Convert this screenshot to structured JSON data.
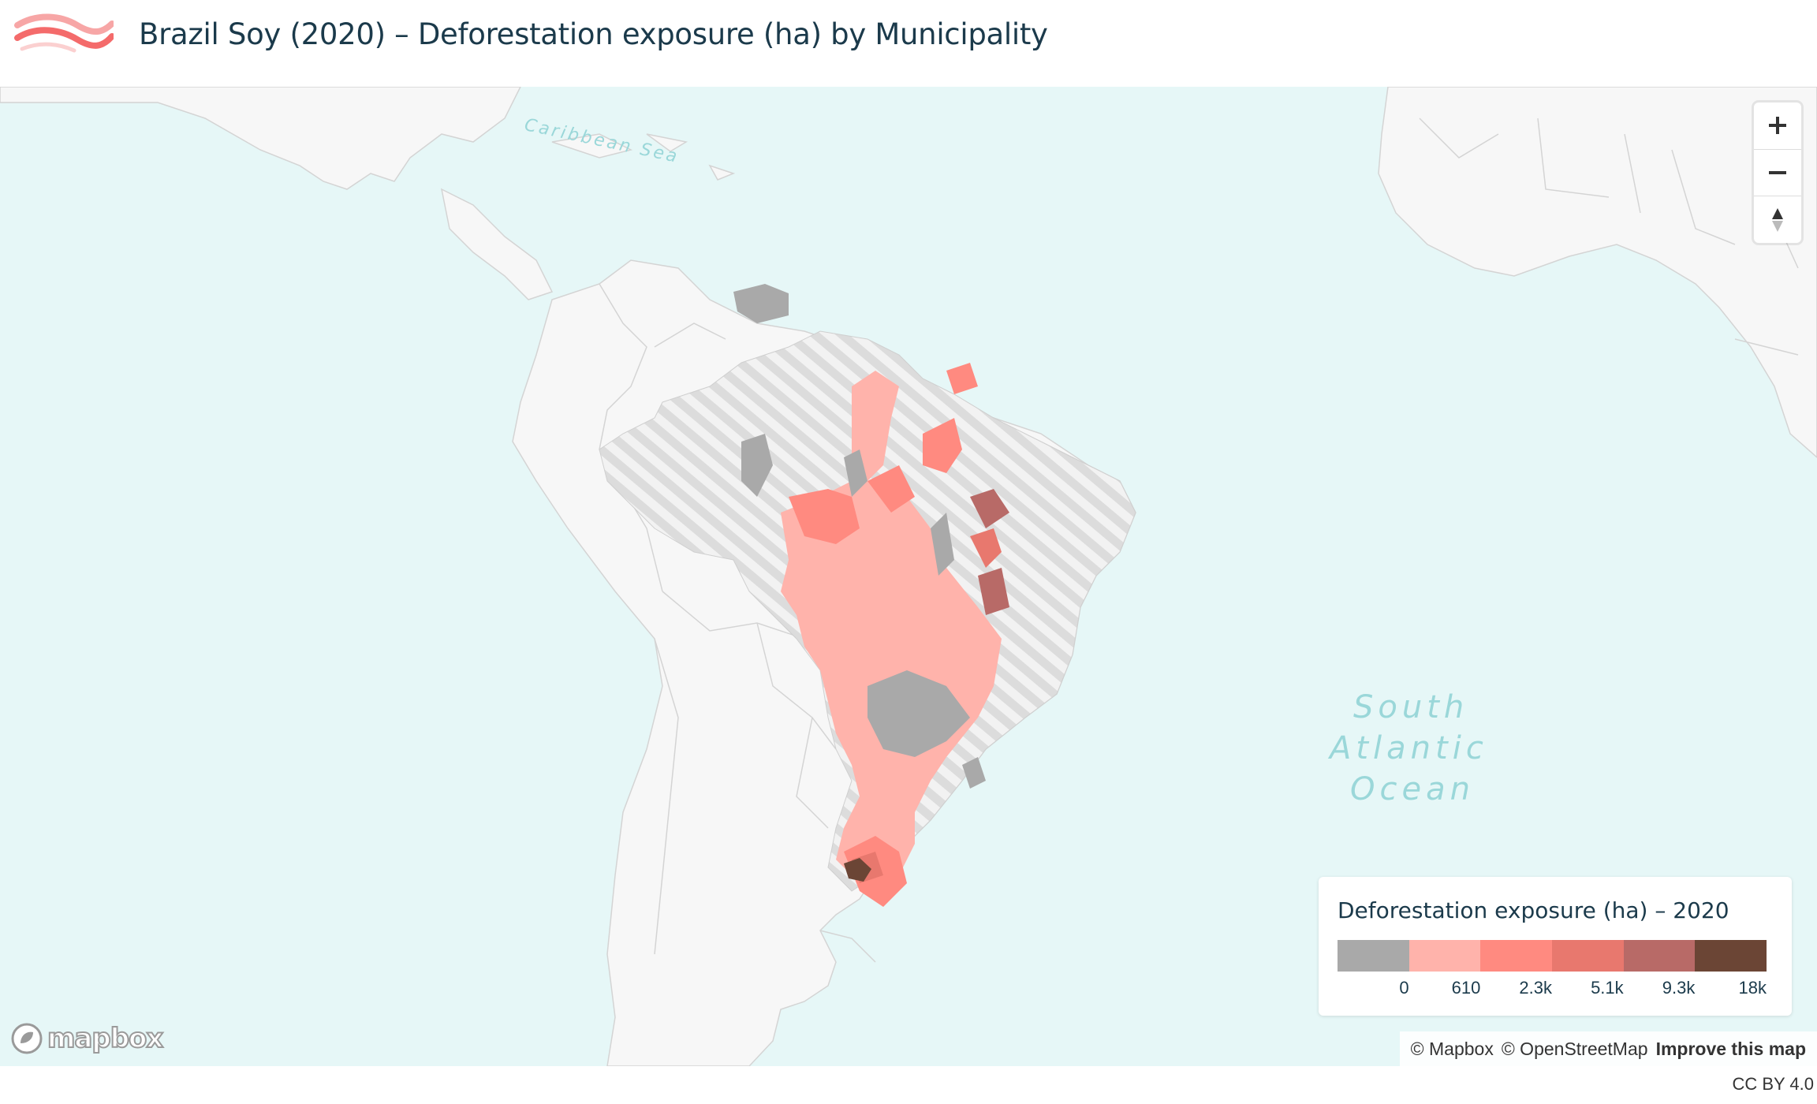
{
  "header": {
    "title": "Brazil Soy (2020) – Deforestation exposure (ha) by Municipality",
    "logo_icon": "wave-logo-icon"
  },
  "map": {
    "labels": {
      "caribbean": "Caribbean Sea",
      "south": "South",
      "atlantic": "Atlantic",
      "ocean": "Ocean"
    },
    "colors": {
      "water": "#e6f7f7",
      "land": "#f7f7f7",
      "no_data_hatch": "#d9d9d9",
      "zero": "#a9a9a9"
    }
  },
  "controls": {
    "zoom_in_icon": "plus-icon",
    "zoom_out_icon": "minus-icon",
    "compass_icon": "compass-icon"
  },
  "legend": {
    "title": "Deforestation exposure (ha) – 2020",
    "colors": [
      "#a9a9a9",
      "#ffb3ab",
      "#ff8a80",
      "#e8786e",
      "#b86a67",
      "#6b4535"
    ],
    "ticks": [
      "0",
      "610",
      "2.3k",
      "5.1k",
      "9.3k",
      "18k"
    ]
  },
  "attribution": {
    "mapbox": "© Mapbox",
    "osm": "© OpenStreetMap",
    "improve": "Improve this map"
  },
  "mapbox_logo": {
    "text": "mapbox"
  },
  "footer": {
    "license": "CC BY 4.0"
  }
}
